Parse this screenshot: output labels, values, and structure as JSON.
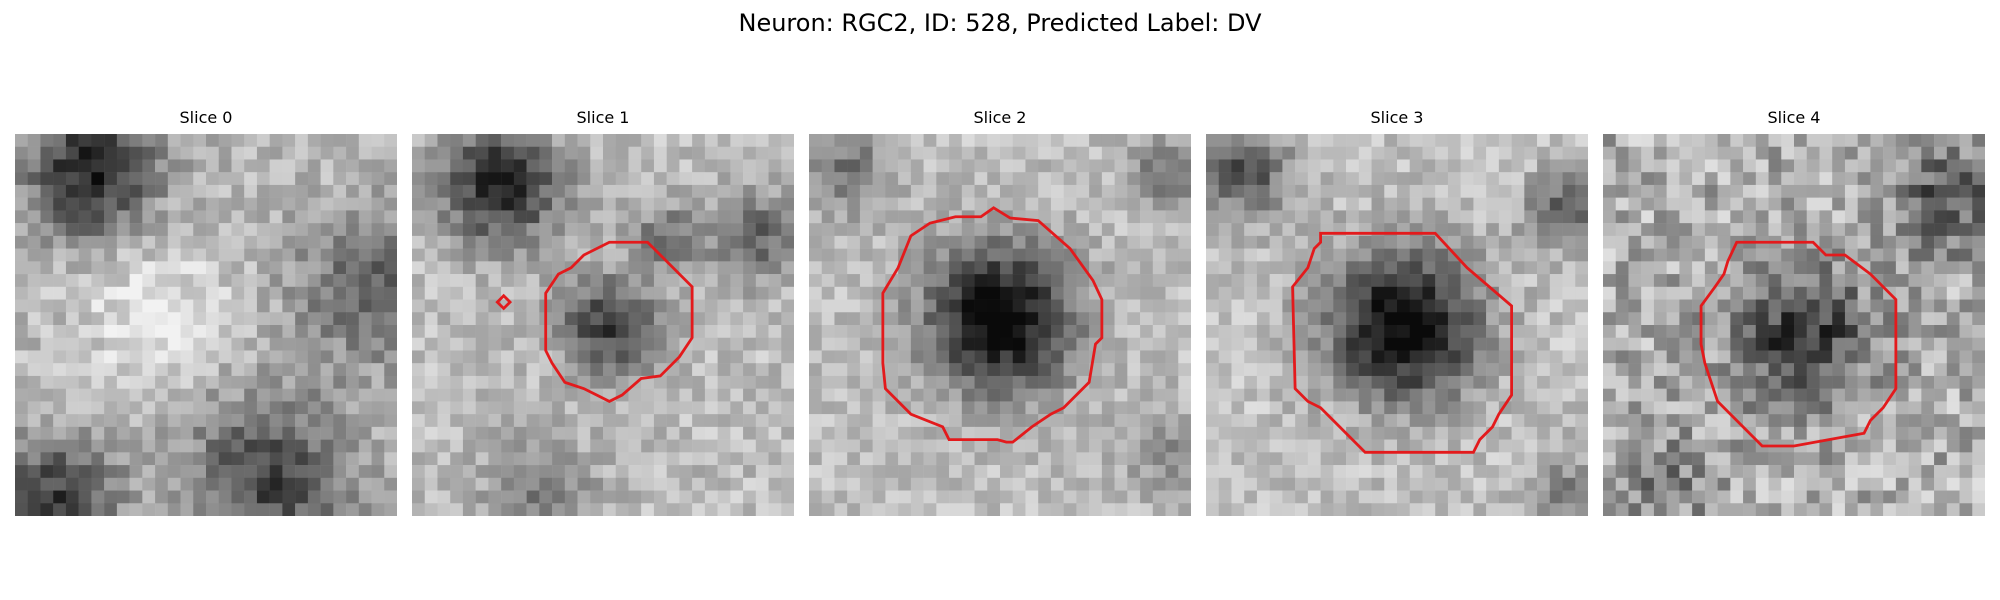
{
  "figure": {
    "title": "Neuron: RGC2, ID: 528, Predicted Label: DV"
  },
  "panels": [
    {
      "title": "Slice 0",
      "contour_color": "#e31a1c",
      "has_contour": false
    },
    {
      "title": "Slice 1",
      "contour_color": "#e31a1c",
      "has_contour": true
    },
    {
      "title": "Slice 2",
      "contour_color": "#e31a1c",
      "has_contour": true
    },
    {
      "title": "Slice 3",
      "contour_color": "#e31a1c",
      "has_contour": true
    },
    {
      "title": "Slice 4",
      "contour_color": "#e31a1c",
      "has_contour": true
    }
  ]
}
